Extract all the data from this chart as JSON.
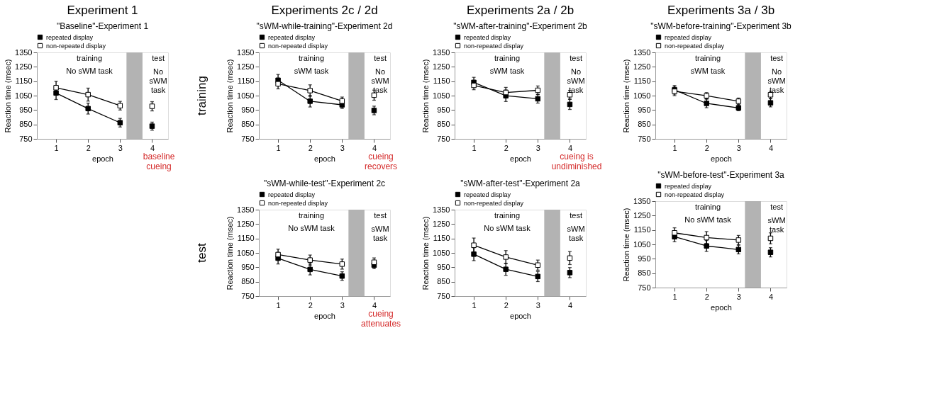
{
  "chart_data": [
    {
      "type": "line",
      "title": "\"Baseline\"-Experiment 1",
      "xlabel": "epoch",
      "ylabel": "Reaction time (msec)",
      "x": [
        1,
        2,
        3,
        3.5,
        4
      ],
      "xlim": [
        0.4,
        4.5
      ],
      "xticks": [
        1,
        2,
        3,
        4
      ],
      "ylim": [
        750,
        1350
      ],
      "yticks": [
        750,
        850,
        950,
        1050,
        1150,
        1250,
        1350
      ],
      "grid": false,
      "legend": "top",
      "marker": "square",
      "line_style": "solid",
      "bands": [
        {
          "axis": "x",
          "from": 3.2,
          "to": 3.7,
          "color": "#b3b3b3"
        }
      ],
      "series": [
        {
          "name": "repeated display",
          "color": "#000000",
          "values": [
            1068,
            960,
            862,
            null,
            838
          ],
          "errors": [
            45,
            38,
            30,
            null,
            28
          ]
        },
        {
          "name": "non-repeated display",
          "color": "#ffffff",
          "values": [
            1105,
            1057,
            980,
            null,
            976
          ],
          "errors": [
            45,
            45,
            30,
            null,
            32
          ]
        }
      ],
      "annotations": [
        "Experiment 1",
        "training",
        "No sWM task",
        "test",
        "No\nsWM\ntask",
        "baseline\ncueing"
      ]
    },
    {
      "type": "line",
      "title": "\"sWM-while-training\"-Experiment 2d",
      "xlabel": "epoch",
      "ylabel": "Reaction time (msec)",
      "x": [
        1,
        2,
        3,
        3.5,
        4
      ],
      "xlim": [
        0.4,
        4.5
      ],
      "xticks": [
        1,
        2,
        3,
        4
      ],
      "ylim": [
        750,
        1350
      ],
      "yticks": [
        750,
        850,
        950,
        1050,
        1150,
        1250,
        1350
      ],
      "grid": false,
      "legend": "top",
      "marker": "square",
      "line_style": "solid",
      "bands": [
        {
          "axis": "x",
          "from": 3.2,
          "to": 3.7,
          "color": "#b3b3b3"
        }
      ],
      "series": [
        {
          "name": "repeated display",
          "color": "#000000",
          "values": [
            1157,
            1011,
            986,
            null,
            947
          ],
          "errors": [
            40,
            40,
            25,
            null,
            30
          ]
        },
        {
          "name": "non-repeated display",
          "color": "#ffffff",
          "values": [
            1132,
            1085,
            1012,
            null,
            1053
          ],
          "errors": [
            35,
            40,
            28,
            null,
            35
          ]
        }
      ],
      "annotations": [
        "Experiments 2c / 2d",
        "training",
        "training",
        "sWM task",
        "test",
        "No\nsWM\ntask",
        "cueing\nrecovers"
      ]
    },
    {
      "type": "line",
      "title": "\"sWM-while-test\"-Experiment 2c",
      "xlabel": "epoch",
      "ylabel": "Reaction time (msec)",
      "x": [
        1,
        2,
        3,
        3.5,
        4
      ],
      "xlim": [
        0.4,
        4.5
      ],
      "xticks": [
        1,
        2,
        3,
        4
      ],
      "ylim": [
        750,
        1350
      ],
      "yticks": [
        750,
        850,
        950,
        1050,
        1150,
        1250,
        1350
      ],
      "grid": false,
      "legend": "top",
      "marker": "square",
      "line_style": "solid",
      "bands": [
        {
          "axis": "x",
          "from": 3.2,
          "to": 3.7,
          "color": "#b3b3b3"
        }
      ],
      "series": [
        {
          "name": "repeated display",
          "color": "#000000",
          "values": [
            1013,
            935,
            889,
            null,
            965
          ],
          "errors": [
            40,
            38,
            30,
            null,
            25
          ]
        },
        {
          "name": "non-repeated display",
          "color": "#ffffff",
          "values": [
            1038,
            1000,
            972,
            null,
            985
          ],
          "errors": [
            38,
            35,
            35,
            null,
            30
          ]
        }
      ],
      "annotations": [
        "test",
        "training",
        "No sWM task",
        "test",
        "sWM\ntask",
        "cueing\nattenuates"
      ]
    },
    {
      "type": "line",
      "title": "\"sWM-after-training\"-Experiment 2b",
      "xlabel": "epoch",
      "ylabel": "Reaction time (msec)",
      "x": [
        1,
        2,
        3,
        3.5,
        4
      ],
      "xlim": [
        0.4,
        4.5
      ],
      "xticks": [
        1,
        2,
        3,
        4
      ],
      "ylim": [
        750,
        1350
      ],
      "yticks": [
        750,
        850,
        950,
        1050,
        1150,
        1250,
        1350
      ],
      "grid": false,
      "legend": "top",
      "marker": "square",
      "line_style": "solid",
      "bands": [
        {
          "axis": "x",
          "from": 3.2,
          "to": 3.7,
          "color": "#b3b3b3"
        }
      ],
      "series": [
        {
          "name": "repeated display",
          "color": "#000000",
          "values": [
            1142,
            1049,
            1028,
            null,
            989
          ],
          "errors": [
            35,
            40,
            30,
            null,
            35
          ]
        },
        {
          "name": "non-repeated display",
          "color": "#ffffff",
          "values": [
            1121,
            1072,
            1087,
            null,
            1056
          ],
          "errors": [
            30,
            35,
            30,
            null,
            30
          ]
        }
      ],
      "annotations": [
        "Experiments 2a / 2b",
        "training",
        "sWM task",
        "test",
        "No\nsWM\ntask",
        "cueing is\nundiminished"
      ]
    },
    {
      "type": "line",
      "title": "\"sWM-after-test\"-Experiment 2a",
      "xlabel": "epoch",
      "ylabel": "Reaction time (msec)",
      "x": [
        1,
        2,
        3,
        3.5,
        4
      ],
      "xlim": [
        0.4,
        4.5
      ],
      "xticks": [
        1,
        2,
        3,
        4
      ],
      "ylim": [
        750,
        1350
      ],
      "yticks": [
        750,
        850,
        950,
        1050,
        1150,
        1250,
        1350
      ],
      "grid": false,
      "legend": "top",
      "marker": "square",
      "line_style": "solid",
      "bands": [
        {
          "axis": "x",
          "from": 3.2,
          "to": 3.7,
          "color": "#b3b3b3"
        }
      ],
      "series": [
        {
          "name": "repeated display",
          "color": "#000000",
          "values": [
            1041,
            936,
            886,
            null,
            913
          ],
          "errors": [
            45,
            42,
            35,
            null,
            35
          ]
        },
        {
          "name": "non-repeated display",
          "color": "#ffffff",
          "values": [
            1103,
            1021,
            965,
            null,
            1014
          ],
          "errors": [
            50,
            45,
            35,
            null,
            45
          ]
        }
      ],
      "annotations": [
        "training",
        "No sWM task",
        "test",
        "sWM\ntask"
      ]
    },
    {
      "type": "line",
      "title": "\"sWM-before-training\"-Experiment 3b",
      "xlabel": "epoch",
      "ylabel": "Reaction time (msec)",
      "x": [
        1,
        2,
        3,
        3.5,
        4
      ],
      "xlim": [
        0.4,
        4.5
      ],
      "xticks": [
        1,
        2,
        3,
        4
      ],
      "ylim": [
        750,
        1350
      ],
      "yticks": [
        750,
        850,
        950,
        1050,
        1150,
        1250,
        1350
      ],
      "grid": false,
      "legend": "top",
      "marker": "square",
      "line_style": "solid",
      "bands": [
        {
          "axis": "x",
          "from": 3.2,
          "to": 3.7,
          "color": "#b3b3b3"
        }
      ],
      "series": [
        {
          "name": "repeated display",
          "color": "#000000",
          "values": [
            1090,
            996,
            965,
            null,
            1000
          ],
          "errors": [
            30,
            30,
            20,
            null,
            28
          ]
        },
        {
          "name": "non-repeated display",
          "color": "#ffffff",
          "values": [
            1080,
            1049,
            1011,
            null,
            1056
          ],
          "errors": [
            30,
            22,
            22,
            null,
            25
          ]
        }
      ],
      "annotations": [
        "Experiments 3a / 3b",
        "training",
        "sWM task",
        "test",
        "No\nsWM\ntask"
      ]
    },
    {
      "type": "line",
      "title": "\"sWM-before-test\"-Experiment 3a",
      "xlabel": "epoch",
      "ylabel": "Reaction time (msec)",
      "x": [
        1,
        2,
        3,
        3.5,
        4
      ],
      "xlim": [
        0.4,
        4.5
      ],
      "xticks": [
        1,
        2,
        3,
        4
      ],
      "ylim": [
        750,
        1350
      ],
      "yticks": [
        750,
        850,
        950,
        1050,
        1150,
        1250,
        1350
      ],
      "grid": false,
      "legend": "top",
      "marker": "square",
      "line_style": "solid",
      "bands": [
        {
          "axis": "x",
          "from": 3.2,
          "to": 3.7,
          "color": "#b3b3b3"
        }
      ],
      "series": [
        {
          "name": "repeated display",
          "color": "#000000",
          "values": [
            1103,
            1039,
            1014,
            null,
            995
          ],
          "errors": [
            35,
            38,
            30,
            null,
            32
          ]
        },
        {
          "name": "non-repeated display",
          "color": "#ffffff",
          "values": [
            1130,
            1097,
            1080,
            null,
            1092
          ],
          "errors": [
            35,
            42,
            32,
            null,
            38
          ]
        }
      ],
      "annotations": [
        "training",
        "No sWM task",
        "test",
        "sWM\ntask"
      ]
    }
  ]
}
